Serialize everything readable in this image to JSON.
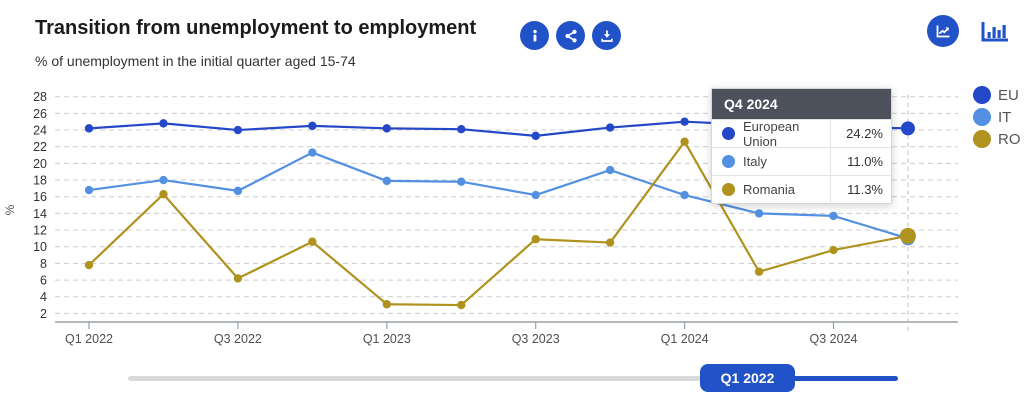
{
  "header": {
    "title": "Transition from unemployment to employment",
    "subtitle": "% of unemployment in the initial quarter aged 15-74"
  },
  "colors": {
    "accent": "#2152c8",
    "grid": "#cccccc",
    "axis": "#9aa0a6",
    "crosshair": "#bbbbbb",
    "tooltip_header_bg": "#4d515c",
    "slider_track": "#d9d9d9"
  },
  "chart_data": {
    "type": "line",
    "x": [
      "Q1 2022",
      "Q2 2022",
      "Q3 2022",
      "Q4 2022",
      "Q1 2023",
      "Q2 2023",
      "Q3 2023",
      "Q4 2023",
      "Q1 2024",
      "Q2 2024",
      "Q3 2024",
      "Q4 2024"
    ],
    "x_tick_every": 2,
    "series": [
      {
        "name": "European Union",
        "short": "EU",
        "color": "#2448c8",
        "values": [
          24.2,
          24.8,
          24.0,
          24.5,
          24.2,
          24.1,
          23.3,
          24.3,
          25.0,
          24.6,
          24.4,
          24.2
        ]
      },
      {
        "name": "Italy",
        "short": "IT",
        "color": "#5390e2",
        "values": [
          16.8,
          18.0,
          16.7,
          21.3,
          17.9,
          17.8,
          16.2,
          19.2,
          16.2,
          14.0,
          13.7,
          11.0
        ]
      },
      {
        "name": "Romania",
        "short": "RO",
        "color": "#b0921f",
        "values": [
          7.8,
          16.3,
          6.2,
          10.6,
          3.1,
          3.0,
          10.9,
          10.5,
          22.6,
          7.0,
          9.6,
          11.3
        ]
      }
    ],
    "ylabel": "%",
    "yticks": [
      2,
      4,
      6,
      8,
      10,
      12,
      14,
      16,
      18,
      20,
      22,
      24,
      26,
      28
    ],
    "ylim": [
      2,
      28
    ],
    "grid": true,
    "legend_position": "right",
    "highlight_x": "Q4 2024"
  },
  "tooltip": {
    "title": "Q4 2024",
    "rows": [
      {
        "label": "European Union",
        "value": "24.2%"
      },
      {
        "label": "Italy",
        "value": "11.0%"
      },
      {
        "label": "Romania",
        "value": "11.3%"
      }
    ]
  },
  "legend": {
    "items": [
      {
        "label": "EU"
      },
      {
        "label": "IT"
      },
      {
        "label": "RO"
      }
    ]
  },
  "slider": {
    "handle_label": "Q1 2022"
  }
}
